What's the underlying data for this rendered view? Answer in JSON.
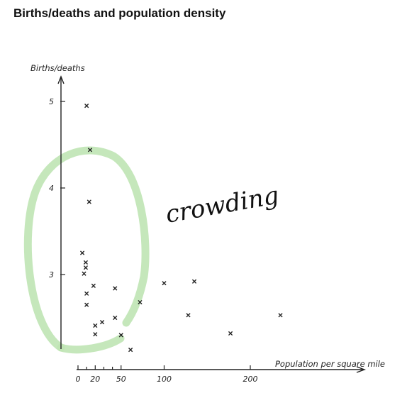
{
  "title": "Births/deaths and population density",
  "annotation": {
    "text": "crowding",
    "text_color": "#111111",
    "circle_color": "#bfe4b4"
  },
  "chart_data": {
    "type": "scatter",
    "title": "Births/deaths and population density",
    "xlabel": "Population per square mile",
    "ylabel": "Births/deaths",
    "xlim": [
      0,
      330
    ],
    "ylim": [
      2.15,
      5.4
    ],
    "x_ticks": [
      0,
      20,
      50,
      100,
      200
    ],
    "x_minor_ticks": [
      10,
      30,
      40
    ],
    "y_ticks": [
      3,
      4,
      5
    ],
    "grid": false,
    "marker": "x",
    "series": [
      {
        "points": [
          {
            "x": 10,
            "y": 4.95
          },
          {
            "x": 14,
            "y": 4.44
          },
          {
            "x": 13,
            "y": 3.84
          },
          {
            "x": 5,
            "y": 3.25
          },
          {
            "x": 9,
            "y": 3.14
          },
          {
            "x": 9,
            "y": 3.08
          },
          {
            "x": 7,
            "y": 3.01
          },
          {
            "x": 10,
            "y": 2.78
          },
          {
            "x": 18,
            "y": 2.87
          },
          {
            "x": 43,
            "y": 2.84
          },
          {
            "x": 10,
            "y": 2.65
          },
          {
            "x": 43,
            "y": 2.5
          },
          {
            "x": 28,
            "y": 2.45
          },
          {
            "x": 20,
            "y": 2.41
          },
          {
            "x": 20,
            "y": 2.31
          },
          {
            "x": 50,
            "y": 2.3
          },
          {
            "x": 72,
            "y": 2.68
          },
          {
            "x": 100,
            "y": 2.9
          },
          {
            "x": 135,
            "y": 2.92
          },
          {
            "x": 128,
            "y": 2.53
          },
          {
            "x": 177,
            "y": 2.32
          },
          {
            "x": 235,
            "y": 2.53
          },
          {
            "x": 61,
            "y": 2.13
          }
        ]
      }
    ]
  }
}
